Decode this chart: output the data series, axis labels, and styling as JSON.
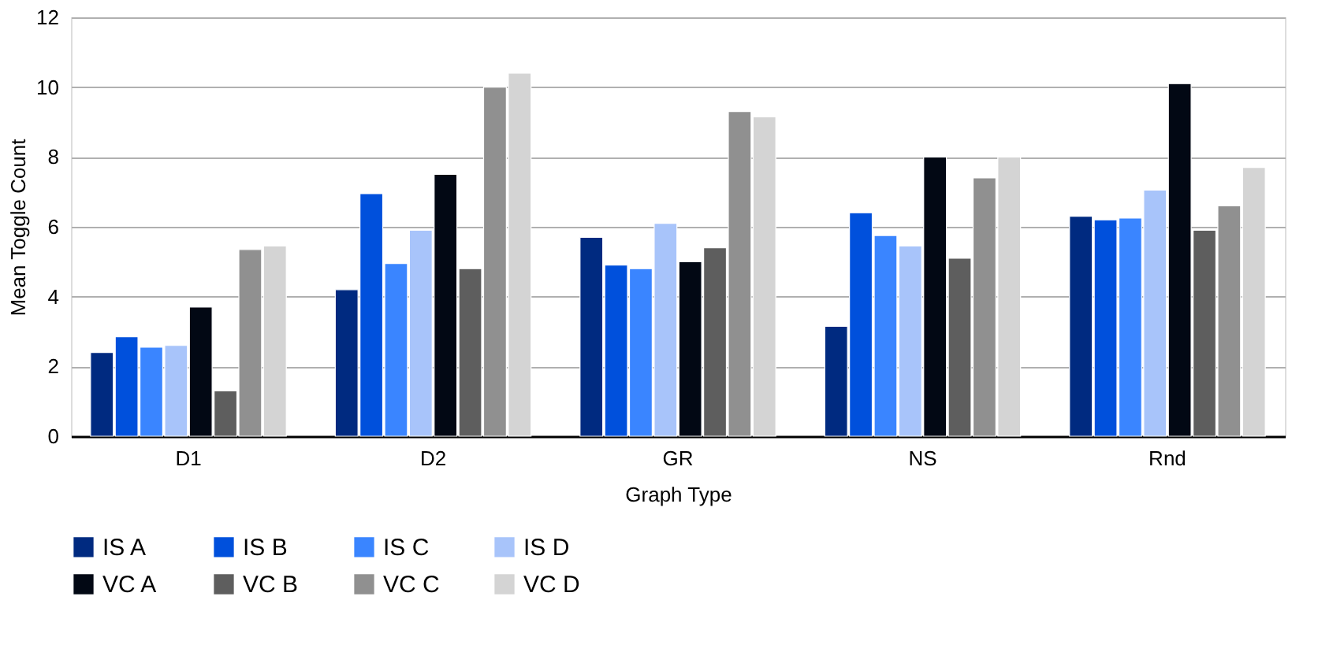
{
  "chart_data": {
    "type": "bar",
    "xlabel": "Graph Type",
    "ylabel": "Mean Toggle Count",
    "categories": [
      "D1",
      "D2",
      "GR",
      "NS",
      "Rnd"
    ],
    "series": [
      {
        "name": "IS A",
        "color": "#002a80",
        "values": [
          2.4,
          4.2,
          5.7,
          3.15,
          6.3
        ]
      },
      {
        "name": "IS B",
        "color": "#0050dc",
        "values": [
          2.85,
          6.95,
          4.9,
          6.4,
          6.2
        ]
      },
      {
        "name": "IS C",
        "color": "#3a85ff",
        "values": [
          2.55,
          4.95,
          4.8,
          5.75,
          6.25
        ]
      },
      {
        "name": "IS D",
        "color": "#a8c4fa",
        "values": [
          2.6,
          5.9,
          6.1,
          5.45,
          7.05
        ]
      },
      {
        "name": "VC A",
        "color": "#020814",
        "values": [
          3.7,
          7.5,
          5.0,
          8.0,
          10.1
        ]
      },
      {
        "name": "VC B",
        "color": "#5e5e5e",
        "values": [
          1.3,
          4.8,
          5.4,
          5.1,
          5.9
        ]
      },
      {
        "name": "VC C",
        "color": "#909090",
        "values": [
          5.35,
          10.0,
          9.3,
          7.4,
          6.6
        ]
      },
      {
        "name": "VC D",
        "color": "#d4d4d4",
        "values": [
          5.45,
          10.4,
          9.15,
          8.0,
          7.7
        ]
      }
    ],
    "ylim": [
      0,
      12
    ],
    "yticks": [
      0,
      2,
      4,
      6,
      8,
      10,
      12
    ],
    "grid": "y",
    "legend": "bottom"
  }
}
